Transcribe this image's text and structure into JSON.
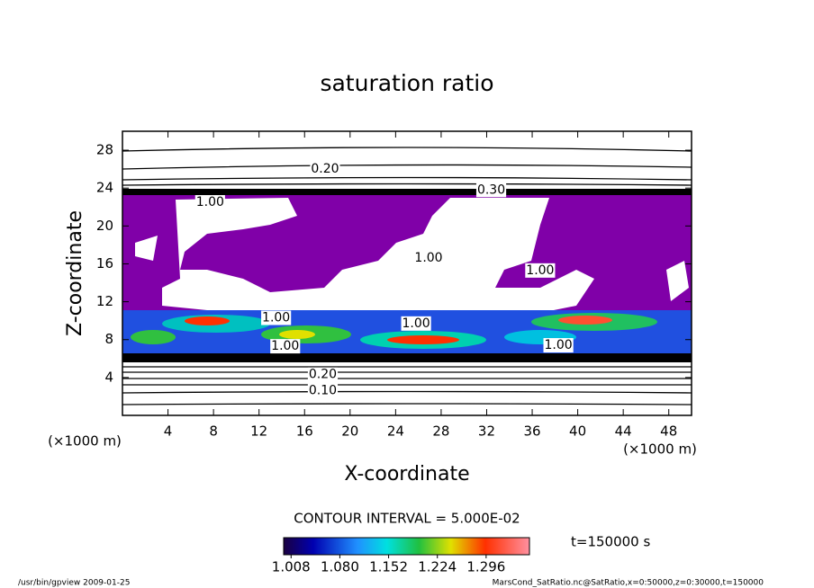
{
  "chart_data": {
    "type": "contour",
    "title": "saturation ratio",
    "x_label": "X-coordinate",
    "y_label": "Z-coordinate",
    "axis_unit": "(×1000 m)",
    "xlim": [
      0,
      50
    ],
    "ylim": [
      0,
      30
    ],
    "xticks": [
      4,
      8,
      12,
      16,
      20,
      24,
      28,
      32,
      36,
      40,
      44,
      48
    ],
    "yticks": [
      4,
      8,
      12,
      16,
      20,
      24,
      28
    ],
    "contour_labels": [
      {
        "text": "0.20",
        "x": 17.8,
        "y": 26
      },
      {
        "text": "0.30",
        "x": 32.4,
        "y": 23.8
      },
      {
        "text": "1.00",
        "x": 7.7,
        "y": 22.5
      },
      {
        "text": "1.00",
        "x": 26.9,
        "y": 16.6
      },
      {
        "text": "1.00",
        "x": 36.7,
        "y": 15.3
      },
      {
        "text": "1.00",
        "x": 13.5,
        "y": 10.3
      },
      {
        "text": "1.00",
        "x": 25.8,
        "y": 9.7
      },
      {
        "text": "1.00",
        "x": 14.3,
        "y": 7.3
      },
      {
        "text": "1.00",
        "x": 38.3,
        "y": 7.4
      },
      {
        "text": "0.20",
        "x": 17.6,
        "y": 4.3
      },
      {
        "text": "0.10",
        "x": 17.6,
        "y": 2.6
      }
    ],
    "contour_interval": "CONTOUR INTERVAL = 5.000E-02",
    "colorbar": {
      "lim": [
        0.997,
        1.36
      ],
      "ticks": [
        {
          "value": 1.008,
          "label": "1.008"
        },
        {
          "value": 1.08,
          "label": "1.080"
        },
        {
          "value": 1.152,
          "label": "1.152"
        },
        {
          "value": 1.224,
          "label": "1.224"
        },
        {
          "value": 1.296,
          "label": "1.296"
        }
      ]
    },
    "time_label": "t=150000 s",
    "footer_left": "/usr/bin/gpview  2009-01-25",
    "footer_right": "MarsCond_SatRatio.nc@SatRatio,x=0:50000,z=0:30000,t=150000"
  }
}
